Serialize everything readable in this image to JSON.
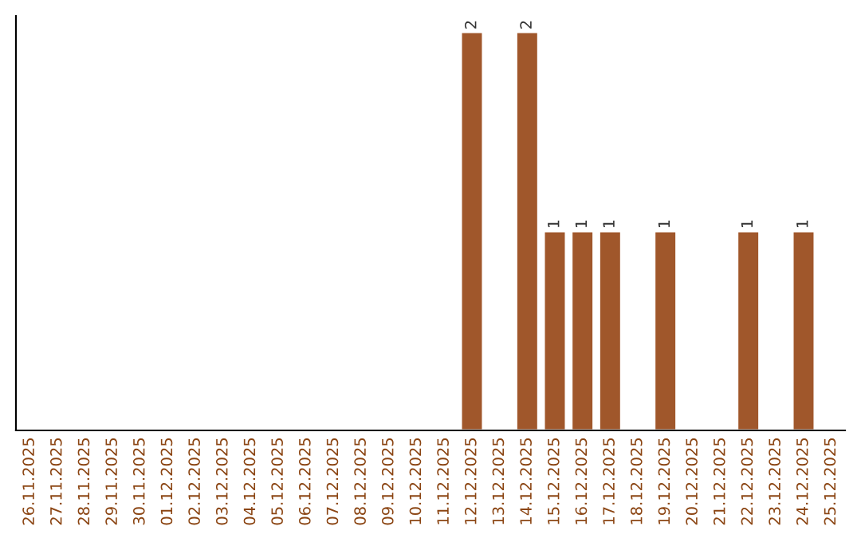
{
  "chart_data": {
    "type": "bar",
    "categories": [
      "26.11.2025",
      "27.11.2025",
      "28.11.2025",
      "29.11.2025",
      "30.11.2025",
      "01.12.2025",
      "02.12.2025",
      "03.12.2025",
      "04.12.2025",
      "05.12.2025",
      "06.12.2025",
      "07.12.2025",
      "08.12.2025",
      "09.12.2025",
      "10.12.2025",
      "11.12.2025",
      "12.12.2025",
      "13.12.2025",
      "14.12.2025",
      "15.12.2025",
      "16.12.2025",
      "17.12.2025",
      "18.12.2025",
      "19.12.2025",
      "20.12.2025",
      "21.12.2025",
      "22.12.2025",
      "23.12.2025",
      "24.12.2025",
      "25.12.2025"
    ],
    "values": [
      null,
      null,
      null,
      null,
      null,
      null,
      null,
      null,
      null,
      null,
      null,
      null,
      null,
      null,
      null,
      null,
      2,
      null,
      2,
      1,
      1,
      1,
      null,
      1,
      null,
      null,
      1,
      null,
      1,
      null
    ],
    "data_labels": true,
    "color": "#a0572b",
    "grid": false,
    "legend": false,
    "tick_labels": "x"
  }
}
